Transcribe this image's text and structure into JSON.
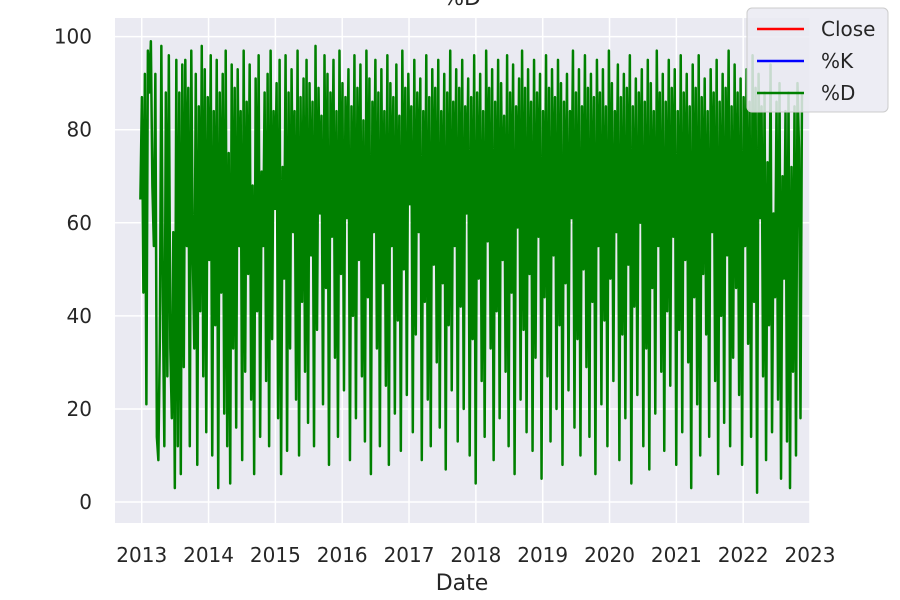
{
  "chart_data": {
    "type": "line",
    "title": "%D",
    "xlabel": "Date",
    "ylabel": "",
    "grid": true,
    "legend_position": "top-right",
    "xlim": [
      2012.6,
      2023.0
    ],
    "ylim": [
      -4.5,
      104
    ],
    "x_ticks": [
      "2013",
      "2014",
      "2015",
      "2016",
      "2017",
      "2018",
      "2019",
      "2020",
      "2021",
      "2022",
      "2023"
    ],
    "y_ticks": [
      "0",
      "20",
      "40",
      "60",
      "80",
      "100"
    ],
    "series": [
      {
        "name": "Close",
        "color": "#ff0000",
        "values": []
      },
      {
        "name": "%K",
        "color": "#0000ff",
        "values": []
      },
      {
        "name": "%D",
        "color": "#008000",
        "x_start": 2012.98,
        "x_end": 2022.88,
        "values": [
          65,
          87,
          45,
          92,
          21,
          97,
          88,
          99,
          68,
          55,
          92,
          14,
          9,
          35,
          98,
          43,
          12,
          88,
          27,
          96,
          33,
          18,
          58,
          3,
          95,
          12,
          88,
          6,
          94,
          29,
          95,
          55,
          89,
          12,
          97,
          54,
          33,
          92,
          8,
          85,
          41,
          98,
          27,
          93,
          15,
          87,
          52,
          96,
          10,
          84,
          38,
          95,
          3,
          88,
          45,
          92,
          19,
          97,
          12,
          75,
          4,
          94,
          33,
          89,
          16,
          93,
          55,
          84,
          9,
          97,
          28,
          86,
          49,
          94,
          22,
          68,
          6,
          91,
          41,
          96,
          14,
          71,
          55,
          88,
          26,
          92,
          12,
          97,
          35,
          84,
          63,
          90,
          18,
          95,
          6,
          72,
          48,
          96,
          11,
          88,
          33,
          93,
          58,
          84,
          22,
          97,
          10,
          87,
          43,
          91,
          28,
          95,
          17,
          90,
          53,
          86,
          12,
          98,
          37,
          89,
          62,
          83,
          21,
          96,
          46,
          92,
          8,
          88,
          57,
          95,
          31,
          84,
          14,
          97,
          49,
          90,
          24,
          87,
          61,
          93,
          9,
          85,
          40,
          96,
          18,
          89,
          52,
          94,
          27,
          82,
          13,
          97,
          44,
          91,
          6,
          86,
          58,
          95,
          33,
          88,
          12,
          93,
          47,
          84,
          25,
          96,
          8,
          90,
          55,
          87,
          19,
          94,
          39,
          83,
          11,
          97,
          50,
          89,
          23,
          92,
          64,
          85,
          15,
          95,
          36,
          88,
          58,
          91,
          9,
          84,
          43,
          96,
          22,
          87,
          12,
          93,
          51,
          89,
          30,
          95,
          16,
          84,
          47,
          92,
          7,
          88,
          38,
          97,
          24,
          86,
          55,
          93,
          13,
          89,
          42,
          95,
          20,
          85,
          62,
          91,
          10,
          87,
          35,
          96,
          4,
          88,
          48,
          92,
          26,
          84,
          14,
          97,
          56,
          89,
          33,
          93,
          9,
          86,
          41,
          95,
          18,
          90,
          52,
          83,
          28,
          96,
          12,
          88,
          45,
          94,
          6,
          85,
          59,
          91,
          22,
          97,
          37,
          89,
          15,
          93,
          49,
          86,
          11,
          95,
          31,
          88,
          57,
          92,
          5,
          84,
          44,
          96,
          27,
          89,
          13,
          93,
          53,
          87,
          20,
          95,
          38,
          90,
          8,
          86,
          47,
          92,
          24,
          84,
          61,
          97,
          16,
          88,
          35,
          93,
          10,
          85,
          50,
          96,
          29,
          89,
          14,
          92,
          43,
          87,
          6,
          95,
          55,
          88,
          21,
          93,
          39,
          85,
          12,
          97,
          48,
          90,
          26,
          84,
          58,
          94,
          9,
          87,
          36,
          92,
          18,
          89,
          51,
          96,
          4,
          85,
          42,
          91,
          23,
          88,
          60,
          93,
          12,
          86,
          33,
          95,
          7,
          90,
          46,
          84,
          19,
          97,
          55,
          88,
          28,
          92,
          11,
          86,
          41,
          95,
          25,
          89,
          57,
          93,
          8,
          84,
          37,
          96,
          15,
          88,
          52,
          92,
          30,
          85,
          3,
          94,
          44,
          89,
          21,
          96,
          10,
          87,
          49,
          91,
          36,
          84,
          14,
          93,
          58,
          88,
          26,
          95,
          6,
          86,
          40,
          92,
          17,
          89,
          53,
          97,
          12,
          85,
          31,
          94,
          46,
          88,
          23,
          91,
          8,
          87,
          55,
          93,
          34,
          86,
          14,
          96,
          43,
          89,
          2,
          92,
          61,
          85,
          27,
          88,
          9,
          73,
          38,
          94,
          15,
          62,
          44,
          86,
          22,
          90,
          5,
          70,
          48,
          84,
          13,
          88,
          3,
          72,
          28,
          85,
          10,
          90,
          76,
          18,
          88
        ]
      }
    ]
  }
}
